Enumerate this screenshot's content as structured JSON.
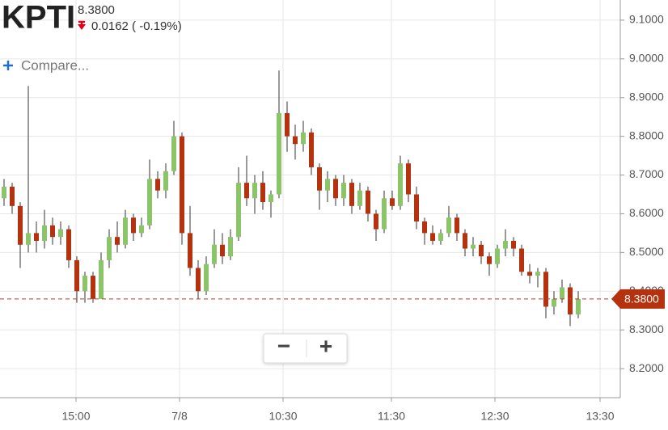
{
  "header": {
    "symbol": "KPTI",
    "price": "8.3800",
    "change": "0.0162 ( -0.19%)",
    "compare": "Compare..."
  },
  "zoom": {
    "out": "−",
    "in": "+"
  },
  "chart_data": {
    "type": "candlestick",
    "x": [
      0,
      1,
      2,
      3,
      4,
      5,
      6,
      7,
      8,
      9,
      10,
      11,
      12,
      13,
      14,
      15,
      16,
      17,
      18,
      19,
      20,
      21,
      22,
      23,
      24,
      25,
      26,
      27,
      28,
      29,
      30,
      31,
      32,
      33,
      34,
      35,
      36,
      37,
      38,
      39,
      40,
      41,
      42,
      43,
      44,
      45,
      46,
      47,
      48,
      49,
      50,
      51,
      52,
      53,
      54,
      55,
      56,
      57,
      58,
      59,
      60,
      61,
      62,
      63,
      64,
      65,
      66,
      67,
      68,
      69,
      70,
      71
    ],
    "open": [
      8.64,
      8.67,
      8.62,
      8.52,
      8.55,
      8.53,
      8.57,
      8.54,
      8.56,
      8.48,
      8.4,
      8.44,
      8.38,
      8.48,
      8.54,
      8.52,
      8.59,
      8.55,
      8.57,
      8.69,
      8.66,
      8.71,
      8.8,
      8.55,
      8.46,
      8.4,
      8.47,
      8.52,
      8.49,
      8.54,
      8.68,
      8.64,
      8.68,
      8.63,
      8.65,
      8.86,
      8.8,
      8.78,
      8.81,
      8.72,
      8.66,
      8.69,
      8.64,
      8.68,
      8.62,
      8.66,
      8.6,
      8.56,
      8.64,
      8.62,
      8.73,
      8.65,
      8.58,
      8.55,
      8.53,
      8.55,
      8.59,
      8.55,
      8.51,
      8.52,
      8.49,
      8.47,
      8.51,
      8.53,
      8.51,
      8.45,
      8.44,
      8.45,
      8.36,
      8.38,
      8.41,
      8.34
    ],
    "high": [
      8.69,
      8.68,
      8.63,
      8.93,
      8.58,
      8.61,
      8.59,
      8.58,
      8.57,
      8.49,
      8.45,
      8.45,
      8.5,
      8.56,
      8.58,
      8.61,
      8.6,
      8.59,
      8.74,
      8.71,
      8.73,
      8.84,
      8.81,
      8.62,
      8.48,
      8.49,
      8.56,
      8.55,
      8.56,
      8.72,
      8.75,
      8.7,
      8.71,
      8.66,
      8.97,
      8.89,
      8.83,
      8.84,
      8.82,
      8.73,
      8.71,
      8.7,
      8.7,
      8.69,
      8.68,
      8.67,
      8.61,
      8.66,
      8.66,
      8.75,
      8.74,
      8.67,
      8.59,
      8.57,
      8.56,
      8.62,
      8.6,
      8.56,
      8.54,
      8.53,
      8.5,
      8.52,
      8.56,
      8.54,
      8.52,
      8.47,
      8.46,
      8.46,
      8.4,
      8.43,
      8.42,
      8.4
    ],
    "low": [
      8.62,
      8.6,
      8.46,
      8.5,
      8.5,
      8.51,
      8.52,
      8.52,
      8.46,
      8.37,
      8.37,
      8.37,
      8.38,
      8.46,
      8.5,
      8.51,
      8.53,
      8.54,
      8.56,
      8.64,
      8.64,
      8.7,
      8.52,
      8.44,
      8.38,
      8.39,
      8.46,
      8.47,
      8.48,
      8.53,
      8.62,
      8.6,
      8.61,
      8.59,
      8.64,
      8.76,
      8.74,
      8.76,
      8.7,
      8.61,
      8.63,
      8.62,
      8.62,
      8.6,
      8.61,
      8.58,
      8.53,
      8.55,
      8.61,
      8.61,
      8.63,
      8.56,
      8.52,
      8.52,
      8.52,
      8.54,
      8.53,
      8.49,
      8.49,
      8.47,
      8.44,
      8.46,
      8.49,
      8.49,
      8.44,
      8.42,
      8.41,
      8.33,
      8.34,
      8.37,
      8.31,
      8.33
    ],
    "close": [
      8.67,
      8.62,
      8.52,
      8.55,
      8.53,
      8.57,
      8.54,
      8.56,
      8.48,
      8.4,
      8.44,
      8.38,
      8.48,
      8.54,
      8.52,
      8.59,
      8.55,
      8.57,
      8.69,
      8.66,
      8.71,
      8.8,
      8.55,
      8.46,
      8.4,
      8.47,
      8.52,
      8.49,
      8.54,
      8.68,
      8.64,
      8.68,
      8.63,
      8.65,
      8.86,
      8.8,
      8.78,
      8.81,
      8.72,
      8.66,
      8.69,
      8.64,
      8.68,
      8.62,
      8.66,
      8.6,
      8.56,
      8.64,
      8.62,
      8.73,
      8.65,
      8.58,
      8.55,
      8.53,
      8.55,
      8.59,
      8.55,
      8.51,
      8.52,
      8.49,
      8.47,
      8.51,
      8.53,
      8.51,
      8.45,
      8.44,
      8.45,
      8.36,
      8.38,
      8.41,
      8.34,
      8.38
    ],
    "up_color": "#8cc46a",
    "down_color": "#b5320f",
    "xlim": [
      -0.5,
      76.2
    ],
    "xticks": [
      {
        "value": 8.9,
        "label": "15:00"
      },
      {
        "value": 21.7,
        "label": "7/8"
      },
      {
        "value": 34.5,
        "label": "10:30"
      },
      {
        "value": 47.9,
        "label": "11:30"
      },
      {
        "value": 60.7,
        "label": "12:30"
      },
      {
        "value": 73.7,
        "label": "13:30"
      }
    ],
    "ylim": [
      8.125,
      9.152
    ],
    "yticks": [
      {
        "value": 8.2,
        "label": "8.2000"
      },
      {
        "value": 8.3,
        "label": "8.3000"
      },
      {
        "value": 8.4,
        "label": "8.4000"
      },
      {
        "value": 8.5,
        "label": "8.5000"
      },
      {
        "value": 8.6,
        "label": "8.6000"
      },
      {
        "value": 8.7,
        "label": "8.7000"
      },
      {
        "value": 8.8,
        "label": "8.8000"
      },
      {
        "value": 8.9,
        "label": "8.9000"
      },
      {
        "value": 9.0,
        "label": "9.0000"
      },
      {
        "value": 9.1,
        "label": "9.1000"
      }
    ],
    "grid": true,
    "last_price": {
      "value": 8.38,
      "label": "8.3800"
    }
  }
}
